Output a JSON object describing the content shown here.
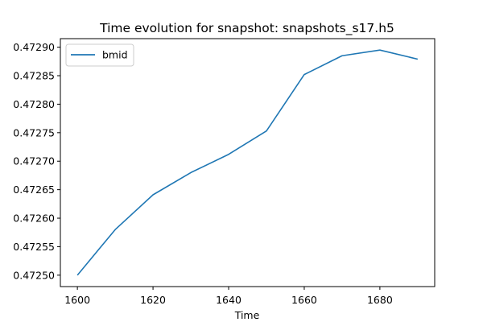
{
  "chart_data": {
    "type": "line",
    "title": "Time evolution for snapshot: snapshots_s17.h5",
    "xlabel": "Time",
    "ylabel": "",
    "x": [
      1600,
      1610,
      1620,
      1630,
      1640,
      1650,
      1660,
      1670,
      1680,
      1690
    ],
    "series": [
      {
        "name": "bmid",
        "color": "#1f77b4",
        "values": [
          0.4725,
          0.47258,
          0.472641,
          0.47268,
          0.472712,
          0.472753,
          0.472852,
          0.472885,
          0.472895,
          0.472879
        ]
      }
    ],
    "xlim": [
      1595.5,
      1694.5
    ],
    "ylim": [
      0.47248,
      0.472915
    ],
    "xticks": [
      1600,
      1620,
      1640,
      1660,
      1680
    ],
    "xtick_labels": [
      "1600",
      "1620",
      "1640",
      "1660",
      "1680"
    ],
    "yticks": [
      0.4725,
      0.47255,
      0.4726,
      0.47265,
      0.4727,
      0.47275,
      0.4728,
      0.47285,
      0.4729
    ],
    "ytick_labels": [
      "0.47250",
      "0.47255",
      "0.47260",
      "0.47265",
      "0.47270",
      "0.47275",
      "0.47280",
      "0.47285",
      "0.47290"
    ],
    "grid": false,
    "legend_position": "top-left"
  }
}
